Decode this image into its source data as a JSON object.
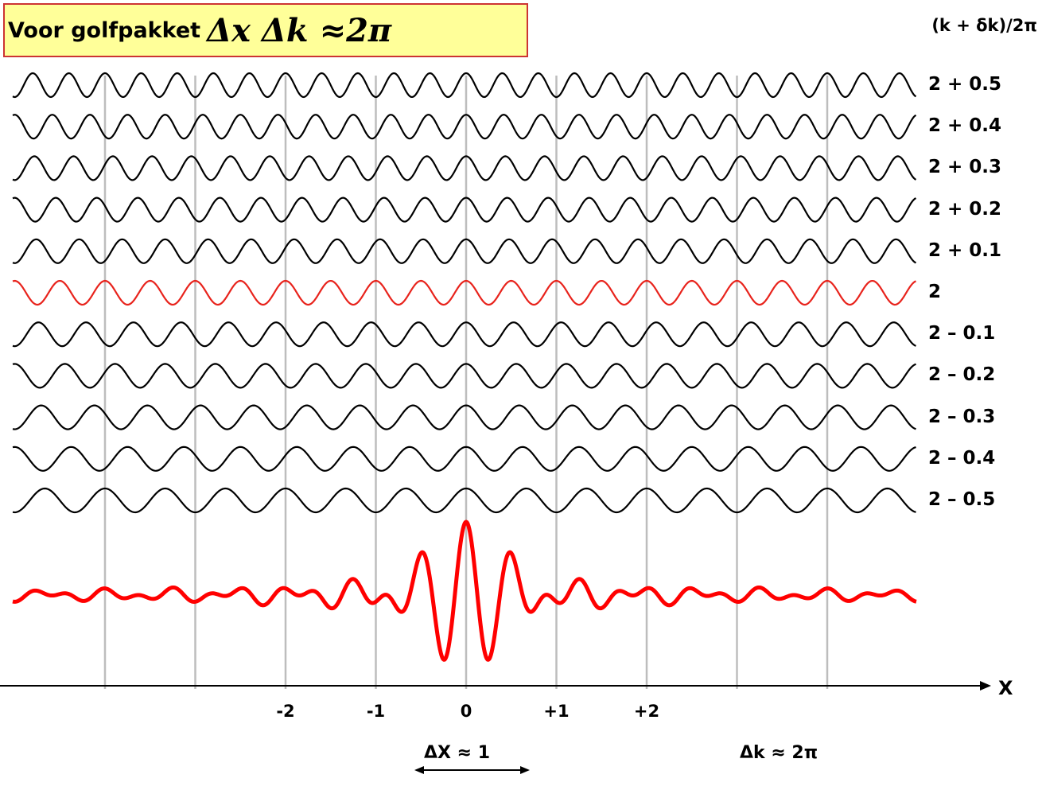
{
  "title": {
    "text": "Voor golfpakket",
    "formula": "Δx Δk ≈2π"
  },
  "header_label": "(k + δk)/2π",
  "waves": [
    {
      "label": "2 + 0.5",
      "k": 2.5,
      "color": "#000000"
    },
    {
      "label": "2 + 0.4",
      "k": 2.4,
      "color": "#000000"
    },
    {
      "label": "2 + 0.3",
      "k": 2.3,
      "color": "#000000"
    },
    {
      "label": "2 + 0.2",
      "k": 2.2,
      "color": "#000000"
    },
    {
      "label": "2 + 0.1",
      "k": 2.1,
      "color": "#000000"
    },
    {
      "label": "2",
      "k": 2.0,
      "color": "#e8231c"
    },
    {
      "label": "2 – 0.1",
      "k": 1.9,
      "color": "#000000"
    },
    {
      "label": "2 – 0.2",
      "k": 1.8,
      "color": "#000000"
    },
    {
      "label": "2 – 0.3",
      "k": 1.7,
      "color": "#000000"
    },
    {
      "label": "2 – 0.4",
      "k": 1.6,
      "color": "#000000"
    },
    {
      "label": "2 – 0.5",
      "k": 1.5,
      "color": "#000000"
    }
  ],
  "packet_color": "#ff0000",
  "x_range": [
    -5,
    5
  ],
  "gridlines_x": [
    -4,
    -3,
    -2,
    -1,
    0,
    1,
    2,
    3,
    4
  ],
  "tick_labels": [
    {
      "x": -2,
      "label": "-2"
    },
    {
      "x": -1,
      "label": "-1"
    },
    {
      "x": 0,
      "label": "0"
    },
    {
      "x": 1,
      "label": "+1"
    },
    {
      "x": 2,
      "label": "+2"
    }
  ],
  "axis_label": "X",
  "delta_x_label": "ΔX ≈ 1",
  "delta_k_label": "Δk ≈ 2π"
}
